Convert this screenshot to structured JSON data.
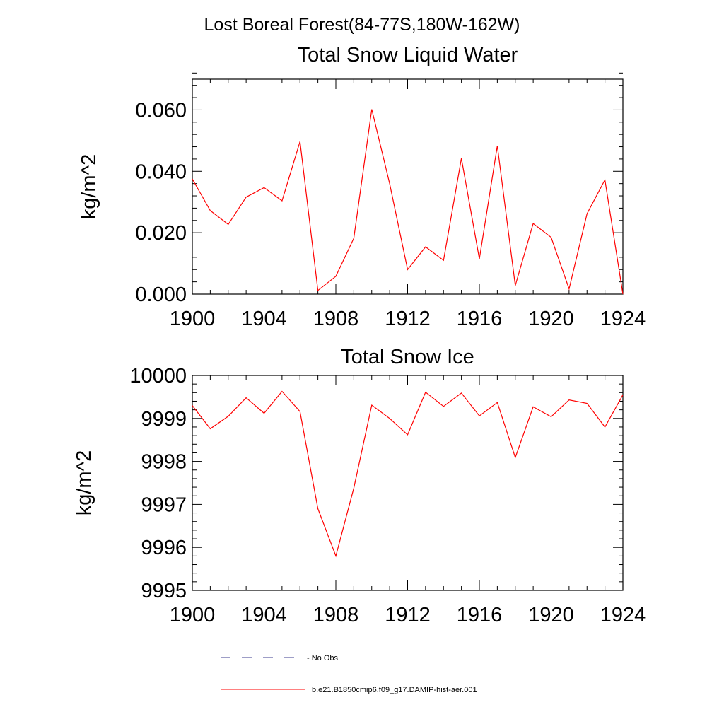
{
  "figure": {
    "suptitle": "Lost Boreal Forest(84-77S,180W-162W)"
  },
  "legend": {
    "items": [
      {
        "label": "- No Obs",
        "style": "dashed",
        "color": "#3d3d8f"
      },
      {
        "label": "b.e21.B1850cmip6.f09_g17.DAMIP-hist-aer.001",
        "style": "solid",
        "color": "#ff0000"
      }
    ]
  },
  "chart_data": [
    {
      "type": "line",
      "title": "Total Snow Liquid Water",
      "ylabel": "kg/m^2",
      "xlabel": "",
      "xlim": [
        1900,
        1924
      ],
      "ylim": [
        0.0,
        0.07
      ],
      "xticks": [
        1900,
        1904,
        1908,
        1912,
        1916,
        1920,
        1924
      ],
      "xtick_labels": [
        "1900",
        "1904",
        "1908",
        "1912",
        "1916",
        "1920",
        "1924"
      ],
      "yticks": [
        0.0,
        0.02,
        0.04,
        0.06
      ],
      "ytick_labels": [
        "0.000",
        "0.020",
        "0.040",
        "0.060"
      ],
      "grid": false,
      "series": [
        {
          "name": "b.e21.B1850cmip6.f09_g17.DAMIP-hist-aer.001",
          "color": "#ff0000",
          "x": [
            1900,
            1901,
            1902,
            1903,
            1904,
            1905,
            1906,
            1907,
            1908,
            1909,
            1910,
            1911,
            1912,
            1913,
            1914,
            1915,
            1916,
            1917,
            1918,
            1919,
            1920,
            1921,
            1922,
            1923,
            1924
          ],
          "values": [
            0.0375,
            0.0272,
            0.0227,
            0.0316,
            0.0347,
            0.0304,
            0.0497,
            0.0012,
            0.0058,
            0.0182,
            0.0602,
            0.036,
            0.008,
            0.0154,
            0.011,
            0.0442,
            0.0115,
            0.0483,
            0.0028,
            0.023,
            0.0185,
            0.0017,
            0.0262,
            0.0372,
            0.0
          ]
        }
      ]
    },
    {
      "type": "line",
      "title": "Total Snow Ice",
      "ylabel": "kg/m^2",
      "xlabel": "",
      "xlim": [
        1900,
        1924
      ],
      "ylim": [
        9995,
        10000
      ],
      "xticks": [
        1900,
        1904,
        1908,
        1912,
        1916,
        1920,
        1924
      ],
      "xtick_labels": [
        "1900",
        "1904",
        "1908",
        "1912",
        "1916",
        "1920",
        "1924"
      ],
      "yticks": [
        9995,
        9996,
        9997,
        9998,
        9999,
        10000
      ],
      "ytick_labels": [
        "9995",
        "9996",
        "9997",
        "9998",
        "9999",
        "10000"
      ],
      "grid": false,
      "series": [
        {
          "name": "b.e21.B1850cmip6.f09_g17.DAMIP-hist-aer.001",
          "color": "#ff0000",
          "x": [
            1900,
            1901,
            1902,
            1903,
            1904,
            1905,
            1906,
            1907,
            1908,
            1909,
            1910,
            1911,
            1912,
            1913,
            1914,
            1915,
            1916,
            1917,
            1918,
            1919,
            1920,
            1921,
            1922,
            1923,
            1924
          ],
          "values": [
            9999.3,
            9998.76,
            9999.05,
            9999.48,
            9999.12,
            9999.63,
            9999.16,
            9996.9,
            9995.8,
            9997.38,
            9999.31,
            9999.0,
            9998.62,
            9999.61,
            9999.28,
            9999.59,
            9999.06,
            9999.37,
            9998.09,
            9999.27,
            9999.04,
            9999.43,
            9999.35,
            9998.8,
            9999.55
          ]
        }
      ]
    }
  ]
}
